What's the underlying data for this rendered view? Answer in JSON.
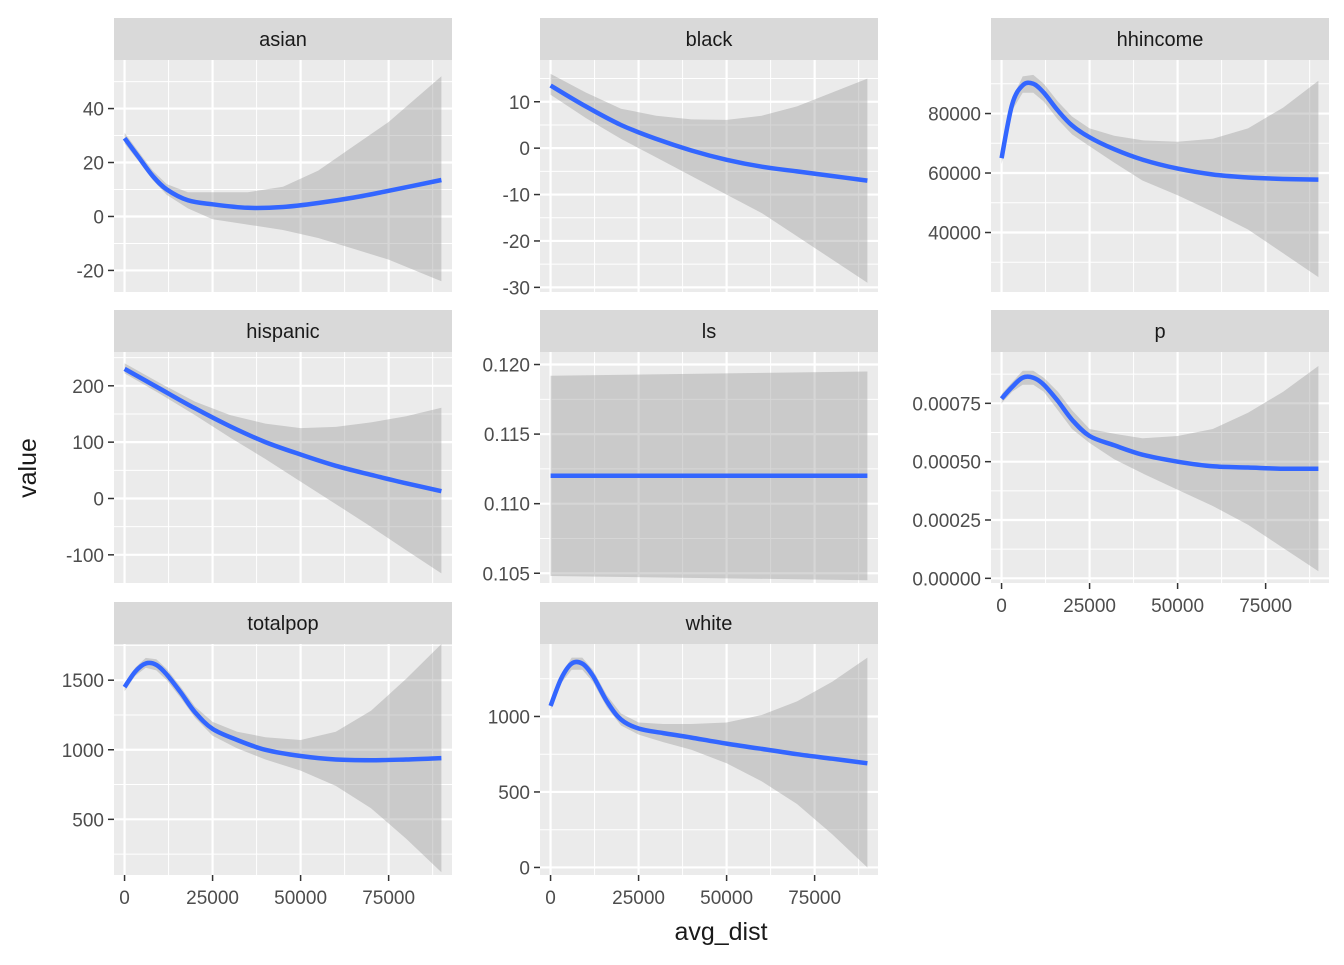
{
  "chart_data": {
    "type": "line",
    "layout": "facet_wrap 3 columns",
    "xlabel": "avg_dist",
    "ylabel": "value",
    "xlim": [
      -3000,
      93000
    ],
    "x_ticks": [
      0,
      25000,
      50000,
      75000
    ],
    "x_tick_labels": [
      "0",
      "25000",
      "50000",
      "75000"
    ],
    "colors": {
      "line": "#3366FF",
      "ribbon": "#999999",
      "panel_bg": "#EBEBEB",
      "strip_bg": "#D9D9D9",
      "grid": "#FFFFFF",
      "text": "#4D4D4D",
      "title_text": "#1A1A1A"
    },
    "panels": [
      {
        "name": "asian",
        "ylim": [
          -28,
          58
        ],
        "y_ticks": [
          -20,
          0,
          20,
          40
        ],
        "y_tick_labels": [
          "-20",
          "0",
          "20",
          "40"
        ],
        "show_x_axis": false,
        "x": [
          0,
          4000,
          8000,
          12000,
          18000,
          25000,
          35000,
          45000,
          55000,
          65000,
          75000,
          90000
        ],
        "y": [
          29,
          22,
          15,
          10,
          6,
          4.5,
          3.2,
          3.5,
          5,
          7,
          9.5,
          13.5
        ],
        "lower": [
          27,
          20.5,
          13.5,
          8,
          3,
          -1,
          -3,
          -5,
          -8,
          -12,
          -16,
          -24
        ],
        "upper": [
          31,
          24,
          17,
          12,
          9,
          9,
          9,
          11,
          17,
          26,
          35,
          52
        ]
      },
      {
        "name": "black",
        "ylim": [
          -31,
          19
        ],
        "y_ticks": [
          -30,
          -20,
          -10,
          0,
          10
        ],
        "y_tick_labels": [
          "-30",
          "-20",
          "-10",
          "0",
          "10"
        ],
        "show_x_axis": false,
        "x": [
          0,
          10000,
          20000,
          30000,
          40000,
          50000,
          60000,
          70000,
          80000,
          90000
        ],
        "y": [
          13.5,
          9,
          5,
          2,
          -0.5,
          -2.5,
          -4,
          -5,
          -6,
          -7
        ],
        "lower": [
          11.5,
          6.5,
          2,
          -2,
          -6,
          -10,
          -14,
          -19,
          -24,
          -29
        ],
        "upper": [
          16,
          12,
          8.5,
          7,
          6.2,
          6.1,
          7,
          9,
          12,
          15
        ]
      },
      {
        "name": "hhincome",
        "ylim": [
          20000,
          98000
        ],
        "y_ticks": [
          40000,
          60000,
          80000
        ],
        "y_tick_labels": [
          "40000",
          "60000",
          "80000"
        ],
        "show_x_axis": false,
        "x": [
          0,
          3000,
          6000,
          9000,
          12000,
          16000,
          20000,
          25000,
          32000,
          40000,
          50000,
          60000,
          70000,
          80000,
          90000
        ],
        "y": [
          65000,
          83000,
          89500,
          90000,
          87000,
          81000,
          76000,
          72000,
          68000,
          64500,
          61500,
          59500,
          58500,
          58000,
          57800
        ],
        "lower": [
          63000,
          81000,
          87000,
          87000,
          84000,
          78000,
          73000,
          69000,
          63500,
          57500,
          52500,
          47000,
          41000,
          33000,
          25000
        ],
        "upper": [
          67000,
          85000,
          92500,
          93000,
          90000,
          84000,
          79000,
          75000,
          72500,
          71000,
          70500,
          71500,
          75000,
          82000,
          91000
        ]
      },
      {
        "name": "hispanic",
        "ylim": [
          -150,
          260
        ],
        "y_ticks": [
          -100,
          0,
          100,
          200
        ],
        "y_tick_labels": [
          "-100",
          "0",
          "100",
          "200"
        ],
        "show_x_axis": false,
        "x": [
          0,
          10000,
          20000,
          30000,
          40000,
          50000,
          60000,
          70000,
          80000,
          90000
        ],
        "y": [
          230,
          195,
          160,
          128,
          100,
          78,
          58,
          42,
          27,
          13
        ],
        "lower": [
          222,
          186,
          148,
          108,
          70,
          30,
          -10,
          -50,
          -92,
          -133
        ],
        "upper": [
          240,
          205,
          172,
          148,
          133,
          125,
          127,
          135,
          146,
          161
        ]
      },
      {
        "name": "ls",
        "ylim": [
          0.1043,
          0.1209
        ],
        "y_ticks": [
          0.105,
          0.11,
          0.115,
          0.12
        ],
        "y_tick_labels": [
          "0.105",
          "0.110",
          "0.115",
          "0.120"
        ],
        "show_x_axis": false,
        "x": [
          0,
          90000
        ],
        "y": [
          0.112,
          0.112
        ],
        "lower": [
          0.1048,
          0.1045
        ],
        "upper": [
          0.1192,
          0.1195
        ]
      },
      {
        "name": "p",
        "ylim": [
          -2e-05,
          0.00097
        ],
        "y_ticks": [
          0,
          0.00025,
          0.0005,
          0.00075
        ],
        "y_tick_labels": [
          "0.00000",
          "0.00025",
          "0.00050",
          "0.00075"
        ],
        "show_x_axis": true,
        "x": [
          0,
          3000,
          6000,
          9000,
          12000,
          16000,
          20000,
          25000,
          32000,
          40000,
          50000,
          60000,
          70000,
          80000,
          90000
        ],
        "y": [
          0.00077,
          0.00082,
          0.00086,
          0.00086,
          0.00083,
          0.00076,
          0.00068,
          0.00061,
          0.00057,
          0.00053,
          0.0005,
          0.00048,
          0.000475,
          0.00047,
          0.00047
        ],
        "lower": [
          0.00075,
          0.0008,
          0.00083,
          0.00083,
          0.0008,
          0.00072,
          0.00064,
          0.00058,
          0.00051,
          0.00045,
          0.00038,
          0.00031,
          0.00023,
          0.00013,
          3e-05
        ],
        "upper": [
          0.00079,
          0.00084,
          0.00089,
          0.00089,
          0.00086,
          0.0008,
          0.00072,
          0.00064,
          0.00062,
          0.0006,
          0.00061,
          0.00064,
          0.00071,
          0.0008,
          0.00091
        ]
      },
      {
        "name": "totalpop",
        "ylim": [
          100,
          1760
        ],
        "y_ticks": [
          500,
          1000,
          1500
        ],
        "y_tick_labels": [
          "500",
          "1000",
          "1500"
        ],
        "show_x_axis": true,
        "x": [
          0,
          3000,
          6000,
          9000,
          12000,
          16000,
          20000,
          25000,
          32000,
          40000,
          50000,
          60000,
          70000,
          80000,
          90000
        ],
        "y": [
          1450,
          1560,
          1620,
          1610,
          1540,
          1410,
          1270,
          1150,
          1070,
          1000,
          955,
          930,
          925,
          930,
          940
        ],
        "lower": [
          1420,
          1530,
          1590,
          1570,
          1500,
          1370,
          1230,
          1100,
          1010,
          930,
          850,
          740,
          580,
          360,
          120
        ],
        "upper": [
          1480,
          1590,
          1660,
          1650,
          1580,
          1450,
          1310,
          1200,
          1130,
          1090,
          1070,
          1130,
          1280,
          1510,
          1760
        ]
      },
      {
        "name": "white",
        "ylim": [
          -50,
          1480
        ],
        "y_ticks": [
          0,
          500,
          1000
        ],
        "y_tick_labels": [
          "0",
          "500",
          "1000"
        ],
        "show_x_axis": true,
        "x": [
          0,
          3000,
          6000,
          9000,
          12000,
          16000,
          20000,
          25000,
          32000,
          40000,
          50000,
          60000,
          70000,
          80000,
          90000
        ],
        "y": [
          1070,
          1250,
          1350,
          1350,
          1270,
          1100,
          980,
          920,
          890,
          860,
          820,
          785,
          750,
          720,
          690
        ],
        "lower": [
          1040,
          1220,
          1310,
          1310,
          1230,
          1060,
          940,
          880,
          830,
          780,
          690,
          570,
          420,
          220,
          0
        ],
        "upper": [
          1100,
          1280,
          1390,
          1390,
          1310,
          1140,
          1020,
          960,
          950,
          950,
          960,
          1010,
          1100,
          1230,
          1390
        ]
      }
    ]
  }
}
